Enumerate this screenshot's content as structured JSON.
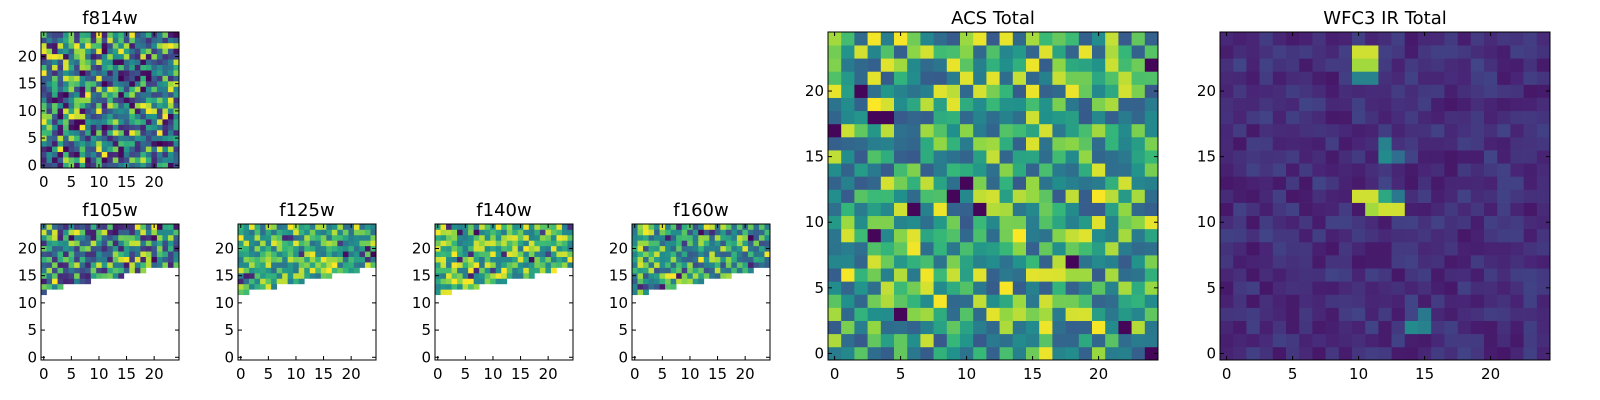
{
  "chart_data": [
    {
      "type": "heatmap",
      "title": "f814w",
      "colormap": "viridis",
      "grid_size": [
        25,
        25
      ],
      "x_ticks": [
        "0",
        "5",
        "10",
        "15",
        "20"
      ],
      "y_ticks": [
        "0",
        "5",
        "10",
        "15",
        "20"
      ],
      "xlim": [
        -0.5,
        24.5
      ],
      "ylim": [
        -0.5,
        24.5
      ],
      "coverage": "full",
      "value_range": [
        0,
        1
      ],
      "seed": 11
    },
    {
      "type": "heatmap",
      "title": "f105w",
      "colormap": "viridis",
      "grid_size": [
        25,
        25
      ],
      "x_ticks": [
        "0",
        "5",
        "10",
        "15",
        "20"
      ],
      "y_ticks": [
        "0",
        "5",
        "10",
        "15",
        "20"
      ],
      "xlim": [
        -0.5,
        24.5
      ],
      "ylim": [
        -0.5,
        24.5
      ],
      "coverage": "upper-band",
      "valid_from_row": {
        "x": [
          0,
          2,
          6,
          12,
          17,
          21,
          24
        ],
        "row": [
          12,
          13,
          14,
          15,
          16,
          17,
          17
        ]
      },
      "value_range": [
        0.1,
        1
      ],
      "seed": 23
    },
    {
      "type": "heatmap",
      "title": "f125w",
      "colormap": "viridis",
      "grid_size": [
        25,
        25
      ],
      "x_ticks": [
        "0",
        "5",
        "10",
        "15",
        "20"
      ],
      "y_ticks": [
        "0",
        "5",
        "10",
        "15",
        "20"
      ],
      "xlim": [
        -0.5,
        24.5
      ],
      "ylim": [
        -0.5,
        24.5
      ],
      "coverage": "upper-band",
      "valid_from_row": {
        "x": [
          0,
          4,
          9,
          14,
          19,
          24
        ],
        "row": [
          12,
          13,
          14,
          15,
          16,
          17
        ]
      },
      "value_range": [
        0.45,
        1
      ],
      "seed": 37
    },
    {
      "type": "heatmap",
      "title": "f140w",
      "colormap": "viridis",
      "grid_size": [
        25,
        25
      ],
      "x_ticks": [
        "0",
        "5",
        "10",
        "15",
        "20"
      ],
      "y_ticks": [
        "0",
        "5",
        "10",
        "15",
        "20"
      ],
      "xlim": [
        -0.5,
        24.5
      ],
      "ylim": [
        -0.5,
        24.5
      ],
      "coverage": "upper-band",
      "valid_from_row": {
        "x": [
          0,
          5,
          10,
          15,
          20,
          24
        ],
        "row": [
          12,
          13,
          14,
          15,
          16,
          17
        ]
      },
      "value_range": [
        0.5,
        1
      ],
      "seed": 41
    },
    {
      "type": "heatmap",
      "title": "f160w",
      "colormap": "viridis",
      "grid_size": [
        25,
        25
      ],
      "x_ticks": [
        "0",
        "5",
        "10",
        "15",
        "20"
      ],
      "y_ticks": [
        "0",
        "5",
        "10",
        "15",
        "20"
      ],
      "xlim": [
        -0.5,
        24.5
      ],
      "ylim": [
        -0.5,
        24.5
      ],
      "coverage": "upper-band",
      "valid_from_row": {
        "x": [
          0,
          5,
          10,
          15,
          20,
          24
        ],
        "row": [
          12,
          13,
          14,
          15,
          16,
          17
        ]
      },
      "value_range": [
        0.3,
        1
      ],
      "seed": 53
    },
    {
      "type": "heatmap",
      "title": "ACS Total",
      "colormap": "viridis",
      "grid_size": [
        25,
        25
      ],
      "x_ticks": [
        "0",
        "5",
        "10",
        "15",
        "20"
      ],
      "y_ticks": [
        "0",
        "5",
        "10",
        "15",
        "20"
      ],
      "xlim": [
        -0.5,
        24.5
      ],
      "ylim": [
        -0.5,
        24.5
      ],
      "coverage": "full",
      "value_range": [
        0.35,
        1
      ],
      "seed": 67,
      "low_cells": [
        [
          3,
          18
        ],
        [
          4,
          18
        ],
        [
          2,
          20
        ],
        [
          10,
          13
        ],
        [
          11,
          11
        ],
        [
          9,
          12
        ],
        [
          5,
          3
        ],
        [
          22,
          2
        ],
        [
          18,
          7
        ],
        [
          24,
          0
        ],
        [
          0,
          17
        ],
        [
          6,
          11
        ],
        [
          3,
          9
        ],
        [
          24,
          22
        ]
      ]
    },
    {
      "type": "heatmap",
      "title": "WFC3 IR Total",
      "colormap": "viridis",
      "grid_size": [
        25,
        25
      ],
      "x_ticks": [
        "0",
        "5",
        "10",
        "15",
        "20"
      ],
      "y_ticks": [
        "0",
        "5",
        "10",
        "15",
        "20"
      ],
      "xlim": [
        -0.5,
        24.5
      ],
      "ylim": [
        -0.5,
        24.5
      ],
      "coverage": "full",
      "value_range": [
        0.08,
        0.25
      ],
      "seed": 79,
      "bright_cells": [
        {
          "x": 10,
          "y": 23,
          "v": 0.95
        },
        {
          "x": 11,
          "y": 23,
          "v": 0.95
        },
        {
          "x": 10,
          "y": 22,
          "v": 0.9
        },
        {
          "x": 11,
          "y": 22,
          "v": 0.9
        },
        {
          "x": 10,
          "y": 21,
          "v": 0.55
        },
        {
          "x": 11,
          "y": 21,
          "v": 0.55
        },
        {
          "x": 12,
          "y": 16,
          "v": 0.55
        },
        {
          "x": 12,
          "y": 15,
          "v": 0.6
        },
        {
          "x": 13,
          "y": 15,
          "v": 0.45
        },
        {
          "x": 10,
          "y": 12,
          "v": 0.95
        },
        {
          "x": 11,
          "y": 12,
          "v": 0.95
        },
        {
          "x": 12,
          "y": 12,
          "v": 0.7
        },
        {
          "x": 11,
          "y": 11,
          "v": 0.9
        },
        {
          "x": 12,
          "y": 11,
          "v": 0.95
        },
        {
          "x": 13,
          "y": 11,
          "v": 0.95
        },
        {
          "x": 13,
          "y": 12,
          "v": 0.5
        },
        {
          "x": 14,
          "y": 2,
          "v": 0.6
        },
        {
          "x": 15,
          "y": 2,
          "v": 0.55
        },
        {
          "x": 15,
          "y": 3,
          "v": 0.5
        }
      ]
    }
  ]
}
